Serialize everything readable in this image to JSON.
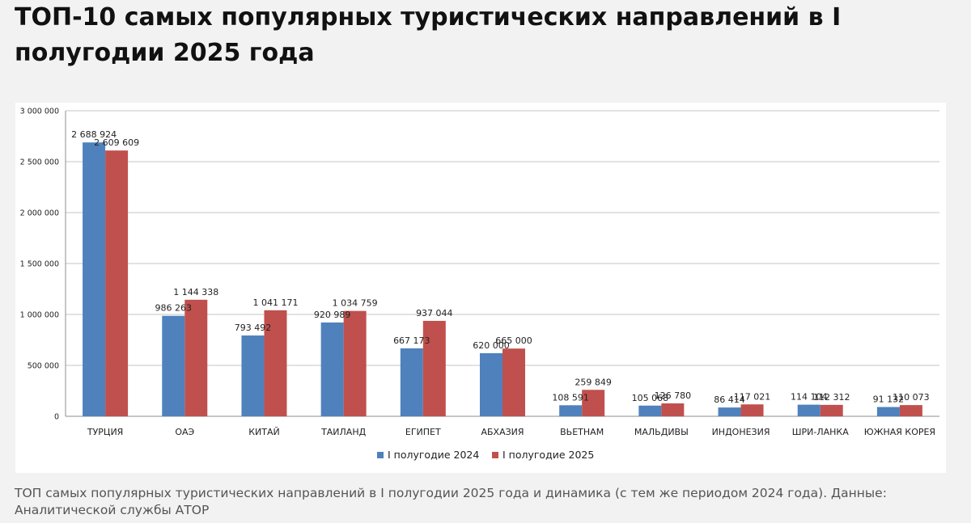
{
  "page": {
    "title": "ТОП-10 самых популярных туристических направлений в I полугодии 2025 года",
    "caption": "ТОП самых популярных туристических направлений в I полугодии 2025 года и динамика (с тем же периодом 2024 года). Данные: Аналитической службы АТОР"
  },
  "chart_data": {
    "type": "bar",
    "title": "",
    "xlabel": "",
    "ylabel": "",
    "ylim": [
      0,
      3000000
    ],
    "yticks": [
      0,
      500000,
      1000000,
      1500000,
      2000000,
      2500000,
      3000000
    ],
    "ytick_labels": [
      "0",
      "500 000",
      "1 000 000",
      "1 500 000",
      "2 000 000",
      "2 500 000",
      "3 000 000"
    ],
    "grid": true,
    "legend_position": "bottom-center",
    "categories": [
      "ТУРЦИЯ",
      "ОАЭ",
      "КИТАЙ",
      "ТАИЛАНД",
      "ЕГИПЕТ",
      "АБХАЗИЯ",
      "ВЬЕТНАМ",
      "МАЛЬДИВЫ",
      "ИНДОНЕЗИЯ",
      "ШРИ-ЛАНКА",
      "ЮЖНАЯ КОРЕЯ"
    ],
    "series": [
      {
        "name": "I полугодие 2024",
        "color": "#4f81bd",
        "values": [
          2688924,
          986263,
          793492,
          920989,
          667173,
          620000,
          108591,
          105068,
          86414,
          114104,
          91132
        ],
        "labels": [
          "2 688 924",
          "986 263",
          "793 492",
          "920 989",
          "667 173",
          "620 000",
          "108 591",
          "105 068",
          "86 414",
          "114 104",
          "91 132"
        ]
      },
      {
        "name": "I полугодие 2025",
        "color": "#c0504d",
        "values": [
          2609609,
          1144338,
          1041171,
          1034759,
          937044,
          665000,
          259849,
          126780,
          117021,
          112312,
          110073
        ],
        "labels": [
          "2 609 609",
          "1 144 338",
          "1 041 171",
          "1 034 759",
          "937 044",
          "665 000",
          "259 849",
          "126 780",
          "117 021",
          "112 312",
          "110 073"
        ]
      }
    ]
  }
}
